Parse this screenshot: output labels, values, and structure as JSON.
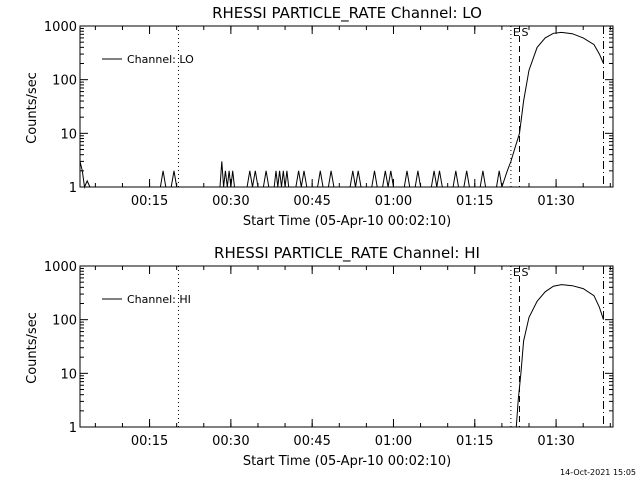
{
  "footer": {
    "timestamp": "14-Oct-2021 15:05"
  },
  "chart_data": [
    {
      "type": "line",
      "title": "RHESSI PARTICLE_RATE Channel: LO",
      "xlabel": "Start Time (05-Apr-10 00:02:10)",
      "ylabel": "Counts/sec",
      "y_scale": "log",
      "xlim": [
        "00:02:10",
        "01:40:30"
      ],
      "ylim": [
        1,
        1000
      ],
      "xticks": [
        "00:15",
        "00:30",
        "00:45",
        "01:00",
        "01:15",
        "01:30"
      ],
      "yticks": [
        "1",
        "10",
        "100",
        "1000"
      ],
      "legend": {
        "placement": "top-left",
        "entries": [
          "Channel: LO"
        ]
      },
      "annotations": [
        {
          "text": "E",
          "x": "01:21:40"
        },
        {
          "text": "S",
          "x": "01:23:15"
        }
      ],
      "vertical_markers": [
        {
          "style": "dotted",
          "x": "00:20:20"
        },
        {
          "style": "dotted",
          "x": "01:21:40"
        },
        {
          "style": "dashed",
          "x": "01:23:15"
        },
        {
          "style": "dash-dot",
          "x": "01:38:45"
        }
      ],
      "series": [
        {
          "name": "Channel: LO",
          "x": [
            "00:02:10",
            "00:02:35",
            "00:03:00",
            "00:03:30",
            "00:04:00",
            "00:17:00",
            "00:17:30",
            "00:18:00",
            "00:19:00",
            "00:19:30",
            "00:20:00",
            "00:28:00",
            "00:28:20",
            "00:28:40",
            "00:29:00",
            "00:29:20",
            "00:29:40",
            "00:30:00",
            "00:30:20",
            "00:30:40",
            "00:31:00",
            "00:33:00",
            "00:33:30",
            "00:34:00",
            "00:34:30",
            "00:35:00",
            "00:36:00",
            "00:36:30",
            "00:37:00",
            "00:38:00",
            "00:38:20",
            "00:38:40",
            "00:39:00",
            "00:39:20",
            "00:39:40",
            "00:40:00",
            "00:40:20",
            "00:40:40",
            "00:41:00",
            "00:42:00",
            "00:42:30",
            "00:43:00",
            "00:43:30",
            "00:44:00",
            "00:46:00",
            "00:46:30",
            "00:47:00",
            "00:48:00",
            "00:48:30",
            "00:49:00",
            "00:52:00",
            "00:52:30",
            "00:53:00",
            "00:53:30",
            "00:54:00",
            "00:56:00",
            "00:56:30",
            "00:57:00",
            "00:58:00",
            "00:58:30",
            "00:59:00",
            "00:59:30",
            "01:00:00",
            "01:02:00",
            "01:02:30",
            "01:03:00",
            "01:04:00",
            "01:04:30",
            "01:05:00",
            "01:07:00",
            "01:07:30",
            "01:08:00",
            "01:08:30",
            "01:09:00",
            "01:11:00",
            "01:11:30",
            "01:12:00",
            "01:13:00",
            "01:13:30",
            "01:14:00",
            "01:16:00",
            "01:16:30",
            "01:17:00",
            "01:19:00",
            "01:19:30",
            "01:20:00",
            "01:21:00",
            "01:21:40",
            "01:22:20",
            "01:23:15",
            "01:24:00",
            "01:25:00",
            "01:26:30",
            "01:28:00",
            "01:29:30",
            "01:31:00",
            "01:33:00",
            "01:35:00",
            "01:37:00",
            "01:38:00",
            "01:38:45"
          ],
          "y": [
            3,
            2,
            1,
            1.3,
            1,
            1,
            2,
            1,
            1,
            2,
            1,
            1,
            3,
            1,
            2,
            1,
            2,
            1,
            2,
            1,
            1,
            1,
            2,
            1,
            2,
            1,
            1,
            2,
            1,
            1,
            2,
            1,
            2,
            1,
            2,
            1,
            2,
            1,
            1,
            1,
            2,
            1,
            2,
            1,
            1,
            2,
            1,
            1,
            2,
            1,
            1,
            2,
            1,
            2,
            1,
            1,
            2,
            1,
            1,
            2,
            1,
            2,
            1,
            1,
            2,
            1,
            1,
            2,
            1,
            1,
            2,
            1,
            2,
            1,
            1,
            2,
            1,
            1,
            2,
            1,
            1,
            2,
            1,
            1,
            2,
            1,
            2,
            3,
            5,
            10,
            40,
            150,
            400,
            600,
            730,
            760,
            720,
            600,
            450,
            300,
            200
          ]
        }
      ]
    },
    {
      "type": "line",
      "title": "RHESSI PARTICLE_RATE Channel: HI",
      "xlabel": "Start Time (05-Apr-10 00:02:10)",
      "ylabel": "Counts/sec",
      "y_scale": "log",
      "xlim": [
        "00:02:10",
        "01:40:30"
      ],
      "ylim": [
        1,
        1000
      ],
      "xticks": [
        "00:15",
        "00:30",
        "00:45",
        "01:00",
        "01:15",
        "01:30"
      ],
      "yticks": [
        "1",
        "10",
        "100",
        "1000"
      ],
      "legend": {
        "placement": "top-left",
        "entries": [
          "Channel: HI"
        ]
      },
      "annotations": [
        {
          "text": "E",
          "x": "01:21:40"
        },
        {
          "text": "S",
          "x": "01:23:15"
        }
      ],
      "vertical_markers": [
        {
          "style": "dotted",
          "x": "00:20:20"
        },
        {
          "style": "dotted",
          "x": "01:21:40"
        },
        {
          "style": "dashed",
          "x": "01:23:15"
        },
        {
          "style": "dash-dot",
          "x": "01:38:45"
        }
      ],
      "series": [
        {
          "name": "Channel: HI",
          "x": [
            "01:22:40",
            "01:23:00",
            "01:23:30",
            "01:24:00",
            "01:25:00",
            "01:26:30",
            "01:28:00",
            "01:29:30",
            "01:31:00",
            "01:33:00",
            "01:35:00",
            "01:37:00",
            "01:38:00",
            "01:38:45"
          ],
          "y": [
            1,
            3,
            10,
            40,
            110,
            220,
            330,
            420,
            450,
            430,
            380,
            280,
            170,
            100
          ]
        }
      ]
    }
  ]
}
